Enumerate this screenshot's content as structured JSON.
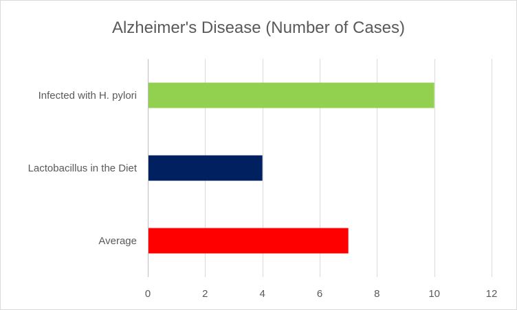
{
  "chart_data": {
    "type": "bar",
    "orientation": "horizontal",
    "title": "Alzheimer's Disease (Number of Cases)",
    "categories": [
      "Infected with H. pylori",
      "Lactobacillus in the Diet",
      "Average"
    ],
    "values": [
      10,
      4,
      7
    ],
    "colors": [
      "#92d050",
      "#002060",
      "#ff0000"
    ],
    "xlim": [
      0,
      12
    ],
    "xticks": [
      0,
      2,
      4,
      6,
      8,
      10,
      12
    ],
    "xlabel": "",
    "ylabel": "",
    "grid": true,
    "legend": "none"
  }
}
